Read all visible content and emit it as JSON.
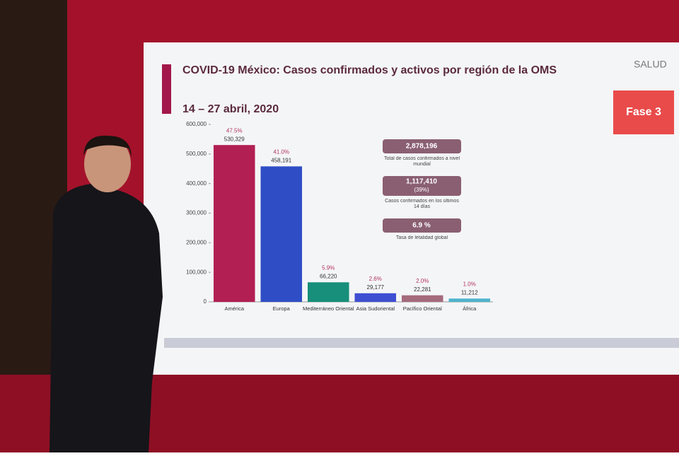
{
  "chart_data": {
    "type": "bar",
    "title": "COVID-19 México: Casos confirmados y activos por región de la OMS",
    "subtitle": "14 – 27 abril, 2020",
    "categories": [
      "América",
      "Europa",
      "Mediterráneo Oriental",
      "Asia Sudoriental",
      "Pacífico Oriental",
      "África"
    ],
    "values": [
      530329,
      458191,
      66220,
      29177,
      22281,
      11212
    ],
    "value_labels": [
      "530,329",
      "458,191",
      "66,220",
      "29,177",
      "22,281",
      "11,212"
    ],
    "percent_labels": [
      "47.5%",
      "41.0%",
      "5.9%",
      "2.6%",
      "2.0%",
      "1.0%"
    ],
    "colors": [
      "#b21f52",
      "#2f4ec6",
      "#178f7b",
      "#3e4fd2",
      "#a56a7c",
      "#4eb4cc"
    ],
    "ylim": [
      0,
      600000
    ],
    "yticks": [
      {
        "value": 0,
        "label": "0"
      },
      {
        "value": 100000,
        "label": "100,000"
      },
      {
        "value": 200000,
        "label": "200,000"
      },
      {
        "value": 300000,
        "label": "300,000"
      },
      {
        "value": 400000,
        "label": "400,000"
      },
      {
        "value": 500000,
        "label": "500,000"
      },
      {
        "value": 600000,
        "label": "600,000"
      }
    ],
    "grid": false
  },
  "panel": [
    {
      "title": "2,878,196",
      "caption": "Total de casos confirmados a nivel mundial"
    },
    {
      "title": "1,117,410",
      "note": "(39%)",
      "caption": "Casos confirmados en los últimos 14 días"
    },
    {
      "title": "6.9 %",
      "caption": "Tasa de letalidad global"
    }
  ],
  "badge": "Fase 3",
  "logo": "SALUD"
}
